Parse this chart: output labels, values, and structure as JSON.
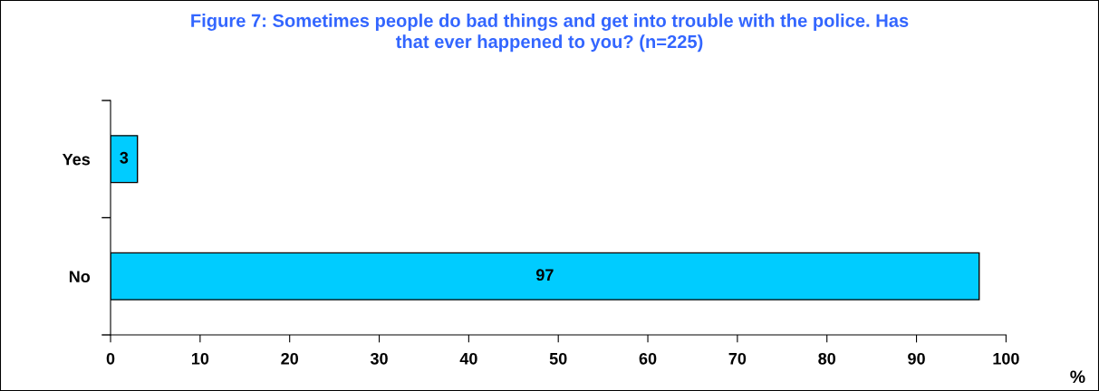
{
  "chart_data": {
    "type": "bar",
    "orientation": "horizontal",
    "title": "Figure 7: Sometimes people do bad things and get into trouble with the police. Has\nthat ever happened to you? (n=225)",
    "xlabel": "%",
    "categories": [
      "Yes",
      "No"
    ],
    "values": [
      3,
      97
    ],
    "color": "#00ccff",
    "xlim": [
      0,
      100
    ],
    "xticks": [
      0,
      10,
      20,
      30,
      40,
      50,
      60,
      70,
      80,
      90,
      100
    ],
    "data_labels": true,
    "grid": false,
    "legend": false
  }
}
